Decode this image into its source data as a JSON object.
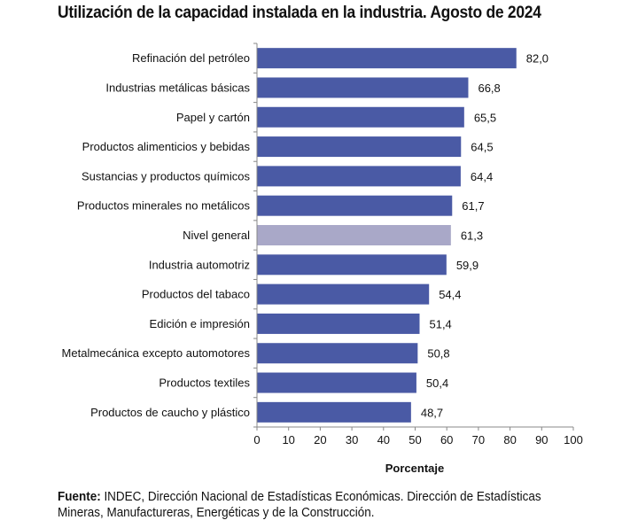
{
  "chart_data": {
    "type": "bar",
    "orientation": "horizontal",
    "title": "Utilización de la capacidad instalada en la industria. Agosto de 2024",
    "xlabel": "Porcentaje",
    "ylabel": "",
    "xlim": [
      0,
      100
    ],
    "xticks": [
      "0",
      "10",
      "20",
      "30",
      "40",
      "50",
      "60",
      "70",
      "80",
      "90",
      "100"
    ],
    "grid": false,
    "categories": [
      "Refinación del petróleo",
      "Industrias metálicas básicas",
      "Papel y cartón",
      "Productos alimenticios y bebidas",
      "Sustancias y productos químicos",
      "Productos minerales no metálicos",
      "Nivel general",
      "Industria automotriz",
      "Productos del tabaco",
      "Edición e impresión",
      "Metalmecánica excepto automotores",
      "Productos textiles",
      "Productos de caucho y plástico"
    ],
    "values": [
      82.0,
      66.8,
      65.5,
      64.5,
      64.4,
      61.7,
      61.3,
      59.9,
      54.4,
      51.4,
      50.8,
      50.4,
      48.7
    ],
    "value_labels": [
      "82,0",
      "66,8",
      "65,5",
      "64,5",
      "64,4",
      "61,7",
      "61,3",
      "59,9",
      "54,4",
      "51,4",
      "50,8",
      "50,4",
      "48,7"
    ],
    "highlight_category": "Nivel general",
    "colors": {
      "bar": "#4a5aa5",
      "highlight": "#a9a8c8",
      "axis": "#888888",
      "text": "#111111"
    }
  },
  "source": {
    "label": "Fuente:",
    "text": " INDEC, Dirección Nacional de Estadísticas Económicas. Dirección de Estadísticas Mineras, Manufactureras, Energéticas y de la Construcción."
  }
}
